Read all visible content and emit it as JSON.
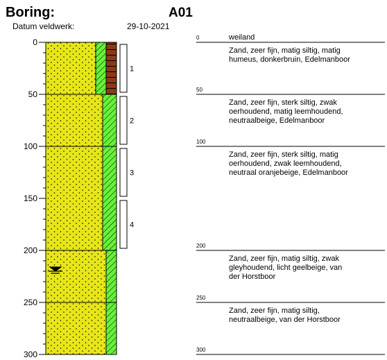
{
  "header": {
    "title": "Boring:",
    "id": "A01",
    "date_label": "Datum veldwerk:",
    "date": "29-10-2021"
  },
  "depth_axis": {
    "lim": [
      0,
      300
    ],
    "ticks": [
      0,
      50,
      100,
      150,
      200,
      250,
      300
    ]
  },
  "layers": [
    {
      "top": 0,
      "annotation": "weiland",
      "description": [
        "Zand, zeer fijn, matig siltig, matig",
        "humeus, donkerbruin, Edelmanboor"
      ]
    },
    {
      "top": 50,
      "description": [
        "Zand, zeer fijn, sterk siltig, zwak",
        "oerhoudend, matig leemhoudend,",
        "neutraalbeige, Edelmanboor"
      ]
    },
    {
      "top": 100,
      "description": [
        "Zand, zeer fijn, sterk siltig, matig",
        "oerhoudend, zwak leemhoudend,",
        "neutraal oranjebeige, Edelmanboor"
      ]
    },
    {
      "top": 200,
      "description": [
        "Zand, zeer fijn, matig siltig, zwak",
        "gleyhoudend, licht geelbeige, van",
        "der Horstboor"
      ]
    },
    {
      "top": 250,
      "description": [
        "Zand, zeer fijn, matig siltig,",
        "neutraalbeige, van der Horstboor"
      ]
    }
  ],
  "base": 300,
  "samples": [
    {
      "label": "1",
      "top": 2,
      "bottom": 48
    },
    {
      "label": "2",
      "top": 52,
      "bottom": 98
    },
    {
      "label": "3",
      "top": 102,
      "bottom": 148
    },
    {
      "label": "4",
      "top": 152,
      "bottom": 198
    }
  ],
  "groundwater": {
    "depth": 220
  }
}
